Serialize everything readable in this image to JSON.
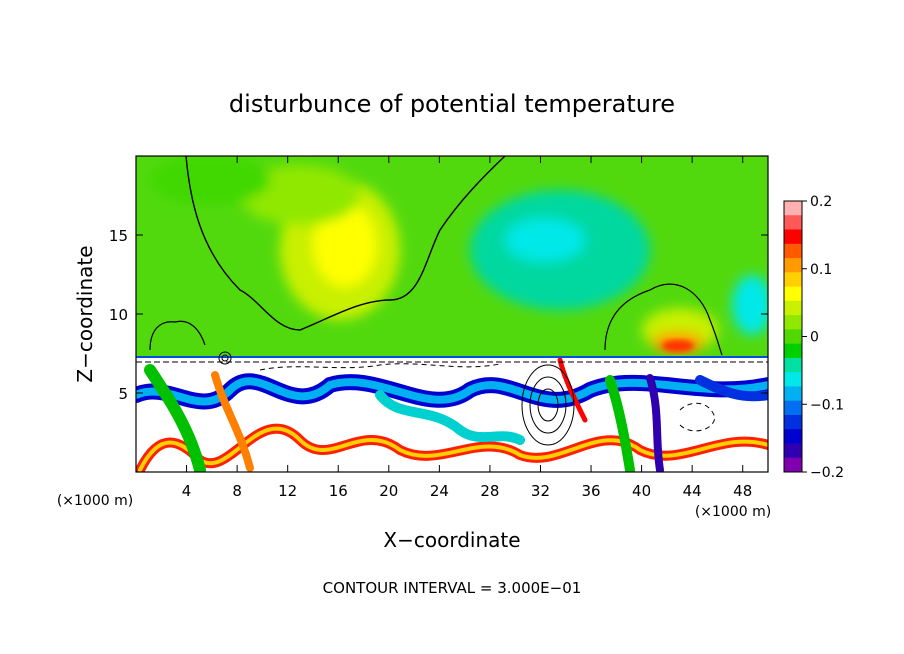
{
  "chart_data": {
    "type": "heatmap",
    "title": "disturbunce of potential temperature",
    "xlabel": "X−coordinate",
    "ylabel": "Z−coordinate",
    "x_unit": "(×1000 m)",
    "y_unit": "(×1000 m)",
    "xlim": [
      0,
      50
    ],
    "ylim": [
      0,
      20
    ],
    "x_ticks": [
      4,
      8,
      12,
      16,
      20,
      24,
      28,
      32,
      36,
      40,
      44,
      48
    ],
    "x_tick_labels": [
      "4",
      "8",
      "12",
      "16",
      "20",
      "24",
      "28",
      "32",
      "36",
      "40",
      "44",
      "48"
    ],
    "y_ticks": [
      5,
      10,
      15
    ],
    "y_tick_labels": [
      "5",
      "10",
      "15"
    ],
    "colorbar": {
      "range": [
        -0.2,
        0.2
      ],
      "ticks": [
        0.2,
        0.1,
        0,
        -0.1,
        -0.2
      ],
      "tick_labels": [
        "0.2",
        "0.1",
        "0",
        "−0.1",
        "−0.2"
      ],
      "colors": [
        "#ffb0b0",
        "#ff5858",
        "#ff0000",
        "#ff5a00",
        "#ff9a00",
        "#ffd000",
        "#ffff00",
        "#c8f000",
        "#90e800",
        "#50d800",
        "#00d000",
        "#00e0a0",
        "#00e8e8",
        "#00b0f0",
        "#0070f0",
        "#0030e0",
        "#0000d0",
        "#3000b0",
        "#8000b0"
      ]
    },
    "annotation": "CONTOUR INTERVAL = 3.000E−01"
  }
}
